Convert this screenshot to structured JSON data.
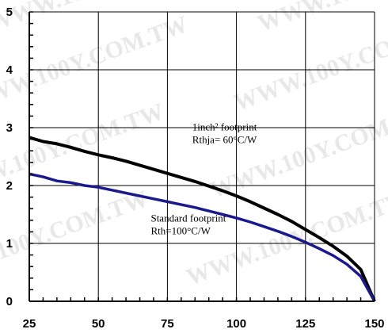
{
  "chart_data": {
    "type": "line",
    "title": "",
    "xlabel": "",
    "ylabel": "",
    "xlim": [
      25,
      150
    ],
    "ylim": [
      0,
      5
    ],
    "x_ticks": [
      25,
      50,
      75,
      100,
      125,
      150
    ],
    "y_ticks": [
      0,
      1,
      2,
      3,
      4,
      5
    ],
    "grid": true,
    "watermark": "WWW.100Y.COM.TW",
    "series": [
      {
        "name": "",
        "color": "#000000",
        "points": [
          [
            25,
            2.83
          ],
          [
            30,
            2.76
          ],
          [
            35,
            2.72
          ],
          [
            40,
            2.66
          ],
          [
            45,
            2.59
          ],
          [
            50,
            2.53
          ],
          [
            55,
            2.48
          ],
          [
            60,
            2.42
          ],
          [
            65,
            2.35
          ],
          [
            70,
            2.28
          ],
          [
            75,
            2.21
          ],
          [
            80,
            2.14
          ],
          [
            85,
            2.07
          ],
          [
            90,
            1.99
          ],
          [
            95,
            1.91
          ],
          [
            100,
            1.82
          ],
          [
            105,
            1.72
          ],
          [
            110,
            1.61
          ],
          [
            115,
            1.5
          ],
          [
            120,
            1.38
          ],
          [
            125,
            1.24
          ],
          [
            130,
            1.1
          ],
          [
            135,
            0.95
          ],
          [
            140,
            0.78
          ],
          [
            145,
            0.55
          ],
          [
            150,
            0.0
          ]
        ]
      },
      {
        "name": "",
        "color": "#1a1a8c",
        "points": [
          [
            25,
            2.2
          ],
          [
            30,
            2.15
          ],
          [
            35,
            2.08
          ],
          [
            40,
            2.05
          ],
          [
            45,
            2.0
          ],
          [
            50,
            1.97
          ],
          [
            55,
            1.92
          ],
          [
            60,
            1.87
          ],
          [
            65,
            1.82
          ],
          [
            70,
            1.77
          ],
          [
            75,
            1.72
          ],
          [
            80,
            1.67
          ],
          [
            85,
            1.62
          ],
          [
            90,
            1.56
          ],
          [
            95,
            1.5
          ],
          [
            100,
            1.44
          ],
          [
            105,
            1.37
          ],
          [
            110,
            1.29
          ],
          [
            115,
            1.21
          ],
          [
            120,
            1.12
          ],
          [
            125,
            1.02
          ],
          [
            130,
            0.91
          ],
          [
            135,
            0.79
          ],
          [
            140,
            0.64
          ],
          [
            145,
            0.43
          ],
          [
            150,
            0.0
          ]
        ]
      }
    ],
    "annotations": [
      {
        "lines": [
          "1inch² footprint",
          "Rthja= 60°C/W"
        ],
        "x": 84,
        "y": 2.95
      },
      {
        "lines": [
          "Standard footprint",
          "Rth=100°C/W"
        ],
        "x": 69,
        "y": 1.38
      }
    ]
  }
}
